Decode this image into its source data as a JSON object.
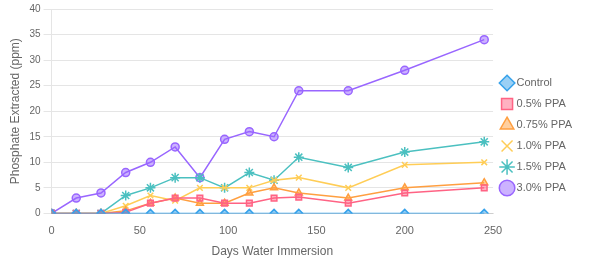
{
  "chart_data": {
    "type": "line",
    "xlabel": "Days Water Immersion",
    "ylabel": "Phosphate Extracted (ppm)",
    "x": [
      0,
      14,
      28,
      42,
      56,
      70,
      84,
      98,
      112,
      126,
      140,
      168,
      200,
      245
    ],
    "xlim": [
      0,
      250
    ],
    "xticks": [
      0,
      50,
      100,
      150,
      200,
      250
    ],
    "ylim": [
      0,
      40
    ],
    "yticks": [
      0,
      5,
      10,
      15,
      20,
      25,
      30,
      35,
      40
    ],
    "grid": "y",
    "legend": "right",
    "series": [
      {
        "name": "Control",
        "marker": "diamond",
        "values": [
          0,
          0,
          0,
          0,
          0,
          0,
          0,
          0,
          0,
          0,
          0,
          0,
          0,
          0
        ]
      },
      {
        "name": "0.5% PPA",
        "marker": "square",
        "values": [
          0,
          0,
          0,
          0.2,
          2.0,
          3.0,
          3.0,
          2.0,
          2.0,
          3.0,
          3.2,
          2.0,
          4.0,
          5.0
        ]
      },
      {
        "name": "0.75% PPA",
        "marker": "triangle",
        "values": [
          0,
          0,
          0,
          0.5,
          2.0,
          3.0,
          2.0,
          2.0,
          4.0,
          5.0,
          4.0,
          3.0,
          5.0,
          6.0
        ]
      },
      {
        "name": "1.0% PPA",
        "marker": "x",
        "values": [
          0,
          0,
          0,
          1.5,
          3.5,
          2.5,
          5.0,
          5.0,
          5.0,
          6.5,
          7.0,
          5.0,
          9.5,
          10.0
        ]
      },
      {
        "name": "1.5% PPA",
        "marker": "star",
        "values": [
          0,
          0,
          0,
          3.5,
          5.0,
          7.0,
          7.0,
          5.0,
          8.0,
          6.5,
          11.0,
          9.0,
          12.0,
          14.0
        ]
      },
      {
        "name": "3.0% PPA",
        "marker": "circle",
        "values": [
          0,
          3.0,
          4.0,
          8.0,
          10.0,
          13.0,
          7.0,
          14.5,
          16.0,
          15.0,
          24.0,
          24.0,
          28.0,
          34.0
        ]
      }
    ]
  }
}
